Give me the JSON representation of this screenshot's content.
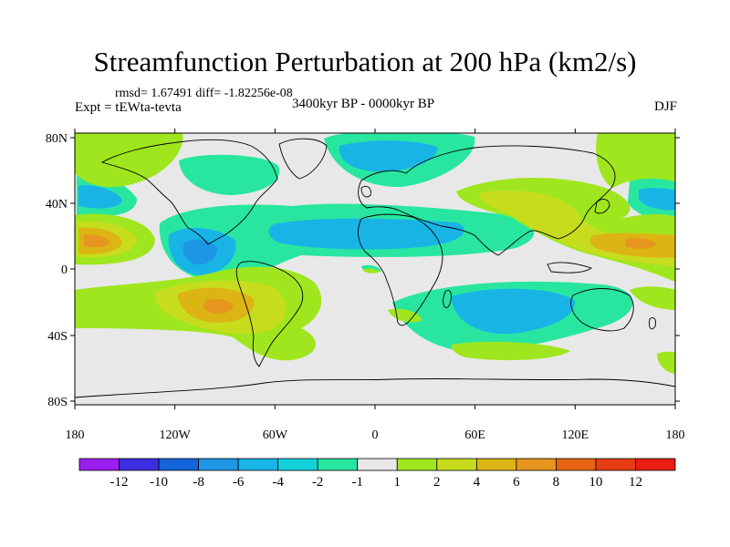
{
  "title": "Streamfunction Perturbation at 200 hPa (km2/s)",
  "stats": "rmsd= 1.67491 diff= -1.82256e-08",
  "experiment": "Expt = tEWta-tevta",
  "period": "3400kyr BP - 0000kyr BP",
  "season": "DJF",
  "axes": {
    "lat_labels": [
      "80N",
      "40N",
      "0",
      "40S",
      "80S"
    ],
    "lon_labels": [
      "180",
      "120W",
      "60W",
      "0",
      "60E",
      "120E",
      "180"
    ]
  },
  "colorbar": {
    "labels": [
      "-12",
      "-10",
      "-8",
      "-6",
      "-4",
      "-2",
      "-1",
      "1",
      "2",
      "4",
      "6",
      "8",
      "10",
      "12"
    ],
    "colors": [
      "#9a1ef0",
      "#3c2de0",
      "#1464dc",
      "#1e96e6",
      "#19b4e6",
      "#14d2dc",
      "#28e6a0",
      "#e8e8e8",
      "#a0e61e",
      "#c8dc1e",
      "#dcb414",
      "#e6961e",
      "#e66414",
      "#e63c14",
      "#e61e14"
    ]
  },
  "colors": {
    "neutral": "#e8e8e8",
    "coast": "#000000"
  }
}
